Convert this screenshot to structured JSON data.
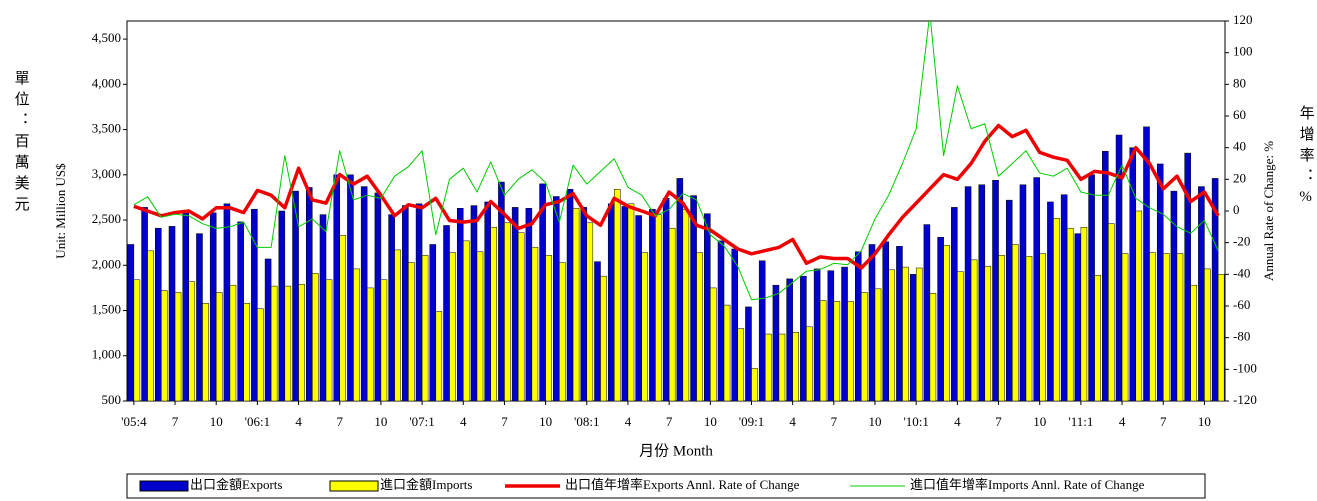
{
  "chart_data": {
    "type": "bar",
    "x_label": "月份 Month",
    "y_label": "Unit: Million US$",
    "y_label_cjk": "單位：百萬美元",
    "y2_label": "Annual Rate of Change: %",
    "y2_label_cjk": "年增率：%",
    "categories": [
      "'05:4",
      null,
      null,
      "7",
      null,
      null,
      "10",
      null,
      null,
      "'06:1",
      null,
      null,
      "4",
      null,
      null,
      "7",
      null,
      null,
      "10",
      null,
      null,
      "'07:1",
      null,
      null,
      "4",
      null,
      null,
      "7",
      null,
      null,
      "10",
      null,
      null,
      "'08:1",
      null,
      null,
      "4",
      null,
      null,
      "7",
      null,
      null,
      "10",
      null,
      null,
      "'09:1",
      null,
      null,
      "4",
      null,
      null,
      "7",
      null,
      null,
      "10",
      null,
      null,
      "'10:1",
      null,
      null,
      "4",
      null,
      null,
      "7",
      null,
      null,
      "10",
      null,
      null,
      "'11:1",
      null,
      null,
      "4",
      null,
      null,
      "7",
      null,
      null,
      "10",
      null
    ],
    "ylim": [
      500,
      4700
    ],
    "yticks": [
      500,
      {
        "value": 1000,
        "label": "1,000"
      },
      {
        "value": 1500,
        "label": "1,500"
      },
      {
        "value": 2000,
        "label": "2,000"
      },
      {
        "value": 2500,
        "label": "2,500"
      },
      {
        "value": 3000,
        "label": "3,000"
      },
      {
        "value": 3500,
        "label": "3,500"
      },
      {
        "value": 4000,
        "label": "4,000"
      },
      {
        "value": 4500,
        "label": "4,500"
      }
    ],
    "y2lim": [
      -120,
      120
    ],
    "y2ticks": [
      -120,
      -100,
      -80,
      -60,
      -40,
      -20,
      0,
      20,
      40,
      60,
      80,
      100,
      120
    ],
    "series": [
      {
        "name": "出口金額Exports",
        "type": "bar",
        "color": "#0000cc",
        "values": [
          2230,
          2640,
          2410,
          2430,
          2580,
          2350,
          2580,
          2680,
          2480,
          2620,
          2070,
          2600,
          2820,
          2860,
          2560,
          3000,
          3000,
          2870,
          2800,
          2560,
          2660,
          2680,
          2230,
          2440,
          2630,
          2660,
          2700,
          2920,
          2640,
          2630,
          2900,
          2760,
          2840,
          2640,
          2040,
          2680,
          2650,
          2550,
          2620,
          2740,
          2960,
          2770,
          2570,
          2270,
          2180,
          1540,
          2050,
          1780,
          1850,
          1880,
          1960,
          1940,
          1980,
          2150,
          2230,
          2260,
          2210,
          1900,
          2450,
          2310,
          2640,
          2870,
          2890,
          2940,
          2720,
          2890,
          2970,
          2700,
          2780,
          2350,
          3000,
          3260,
          3440,
          3300,
          3530,
          3120,
          2820,
          3240,
          2870,
          2960
        ]
      },
      {
        "name": "進口金額Imports",
        "type": "bar",
        "color": "#ffff00",
        "values": [
          1840,
          2160,
          1720,
          1700,
          1820,
          1580,
          1700,
          1780,
          1580,
          1520,
          1770,
          1770,
          1790,
          1910,
          1840,
          2330,
          1960,
          1750,
          1840,
          2170,
          2030,
          2110,
          1490,
          2140,
          2270,
          2150,
          2420,
          2470,
          2360,
          2200,
          2110,
          2030,
          2630,
          2470,
          1880,
          2840,
          2680,
          2140,
          2560,
          2410,
          2620,
          2140,
          1750,
          1560,
          1300,
          860,
          1240,
          1240,
          1260,
          1320,
          1610,
          1600,
          1600,
          1700,
          1740,
          1950,
          1980,
          1970,
          1690,
          2220,
          1930,
          2060,
          1990,
          2110,
          2230,
          2100,
          2130,
          2520,
          2410,
          2420,
          1890,
          2460,
          2130,
          2600,
          2140,
          2130,
          2130,
          1780,
          1960,
          1900
        ]
      },
      {
        "name": "出口值年增率Exports Annl. Rate of Change",
        "type": "line",
        "axis": "y2",
        "color": "#ee0000",
        "values": [
          3,
          0,
          -3,
          -1,
          0,
          -5,
          2,
          2,
          -1,
          13,
          10,
          2,
          27,
          7,
          5,
          23,
          17,
          22,
          10,
          -3,
          4,
          2,
          8,
          -6,
          -7,
          -6,
          6,
          -2,
          -11,
          -8,
          4,
          6,
          11,
          -3,
          -9,
          8,
          3,
          0,
          -3,
          12,
          5,
          -9,
          -12,
          -18,
          -24,
          -27,
          -25,
          -23,
          -18,
          -33,
          -29,
          -30,
          -30,
          -36,
          -27,
          -15,
          -4,
          5,
          14,
          23,
          20,
          30,
          44,
          54,
          47,
          51,
          37,
          34,
          32,
          20,
          25,
          24,
          21,
          40,
          30,
          14,
          22,
          6,
          12,
          -3
        ]
      },
      {
        "name": "進口值年增率Imports Annl. Rate of Change",
        "type": "line",
        "axis": "y2",
        "color": "#00cc00",
        "values": [
          4,
          9,
          -4,
          -2,
          -3,
          -8,
          -11,
          -10,
          -7,
          -23,
          -23,
          35,
          -10,
          -5,
          -13,
          38,
          7,
          10,
          8,
          22,
          28,
          38,
          -15,
          20,
          27,
          12,
          31,
          10,
          20,
          26,
          18,
          -7,
          29,
          17,
          25,
          33,
          15,
          10,
          -3,
          1,
          11,
          7,
          -15,
          -22,
          -35,
          -56,
          -55,
          -52,
          -45,
          -38,
          -37,
          -33,
          -34,
          -25,
          -5,
          10,
          30,
          52,
          125,
          35,
          79,
          52,
          55,
          22,
          30,
          38,
          24,
          22,
          27,
          12,
          10,
          10,
          29,
          8,
          2,
          -2,
          -10,
          -14,
          -6,
          -25
        ]
      }
    ]
  }
}
